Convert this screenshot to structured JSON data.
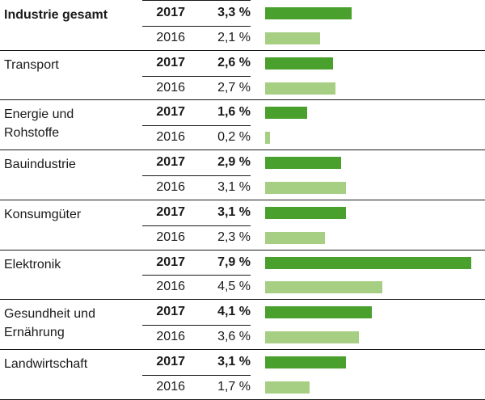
{
  "chart_data": {
    "type": "bar",
    "orientation": "horizontal",
    "colors": {
      "2017": "#4aa02c",
      "2016": "#a6cf83",
      "rule": "#1a1a1a"
    },
    "unit": "%",
    "rows": [
      {
        "category": "Industrie gesamt",
        "category_bold": true,
        "values": [
          {
            "year": "2017",
            "value": 3.3,
            "label": "3,3 %"
          },
          {
            "year": "2016",
            "value": 2.1,
            "label": "2,1 %"
          }
        ]
      },
      {
        "category": "Transport",
        "values": [
          {
            "year": "2017",
            "value": 2.6,
            "label": "2,6 %"
          },
          {
            "year": "2016",
            "value": 2.7,
            "label": "2,7 %"
          }
        ]
      },
      {
        "category": "Energie und\nRohstoffe",
        "values": [
          {
            "year": "2017",
            "value": 1.6,
            "label": "1,6 %"
          },
          {
            "year": "2016",
            "value": 0.2,
            "label": "0,2 %"
          }
        ]
      },
      {
        "category": "Bauindustrie",
        "values": [
          {
            "year": "2017",
            "value": 2.9,
            "label": "2,9 %"
          },
          {
            "year": "2016",
            "value": 3.1,
            "label": "3,1 %"
          }
        ]
      },
      {
        "category": "Konsumgüter",
        "values": [
          {
            "year": "2017",
            "value": 3.1,
            "label": "3,1 %"
          },
          {
            "year": "2016",
            "value": 2.3,
            "label": "2,3 %"
          }
        ]
      },
      {
        "category": "Elektronik",
        "values": [
          {
            "year": "2017",
            "value": 7.9,
            "label": "7,9 %"
          },
          {
            "year": "2016",
            "value": 4.5,
            "label": "4,5 %"
          }
        ]
      },
      {
        "category": "Gesundheit und\nErnährung",
        "values": [
          {
            "year": "2017",
            "value": 4.1,
            "label": "4,1 %"
          },
          {
            "year": "2016",
            "value": 3.6,
            "label": "3,6 %"
          }
        ]
      },
      {
        "category": "Landwirtschaft",
        "values": [
          {
            "year": "2017",
            "value": 3.1,
            "label": "3,1 %"
          },
          {
            "year": "2016",
            "value": 1.7,
            "label": "1,7 %"
          }
        ]
      }
    ]
  }
}
